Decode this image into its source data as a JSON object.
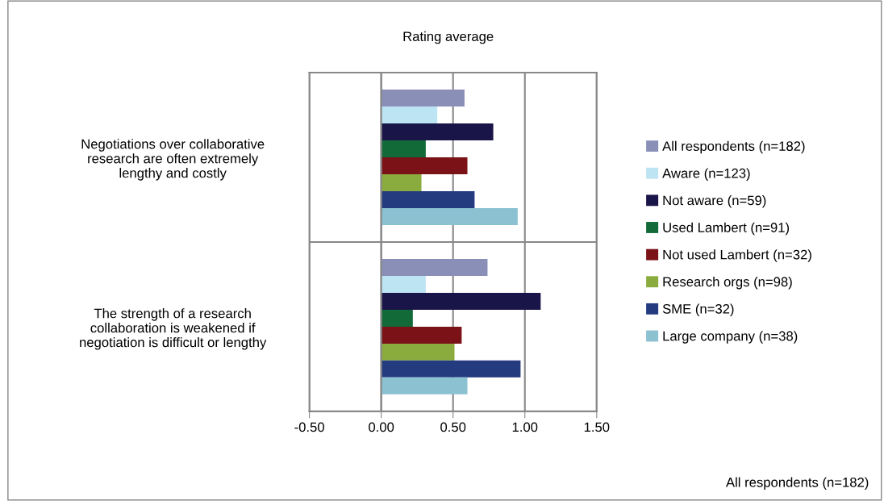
{
  "chart_data": {
    "type": "bar",
    "orientation": "horizontal",
    "title": "Rating average",
    "categories": [
      "Negotiations over collaborative\nresearch are often extremely\nlengthy and costly",
      "The strength of a research\ncollaboration is weakened if\nnegotiation is difficult or lengthy"
    ],
    "series": [
      {
        "name": "All respondents (n=182)",
        "color": "#8a8fb8",
        "values": [
          0.58,
          0.74
        ]
      },
      {
        "name": "Aware (n=123)",
        "color": "#bde4f2",
        "values": [
          0.39,
          0.31
        ]
      },
      {
        "name": "Not aware (n=59)",
        "color": "#1a1548",
        "values": [
          0.78,
          1.11
        ]
      },
      {
        "name": "Used Lambert (n=91)",
        "color": "#116a38",
        "values": [
          0.31,
          0.22
        ]
      },
      {
        "name": "Not used Lambert (n=32)",
        "color": "#7a1217",
        "values": [
          0.6,
          0.56
        ]
      },
      {
        "name": "Research orgs (n=98)",
        "color": "#8aab3e",
        "values": [
          0.28,
          0.51
        ]
      },
      {
        "name": "SME (n=32)",
        "color": "#243b7f",
        "values": [
          0.65,
          0.97
        ]
      },
      {
        "name": "Large company (n=38)",
        "color": "#8bc1d1",
        "values": [
          0.95,
          0.6
        ]
      }
    ],
    "xlim": [
      -0.5,
      1.5
    ],
    "xticks": [
      {
        "value": -0.5,
        "label": "-0.50"
      },
      {
        "value": 0,
        "label": "0.00"
      },
      {
        "value": 0.5,
        "label": "0.50"
      },
      {
        "value": 1,
        "label": "1.00"
      },
      {
        "value": 1.5,
        "label": "1.50"
      }
    ],
    "grid": true,
    "legend": "right",
    "annotations": [
      "All respondents (n=182)"
    ]
  }
}
